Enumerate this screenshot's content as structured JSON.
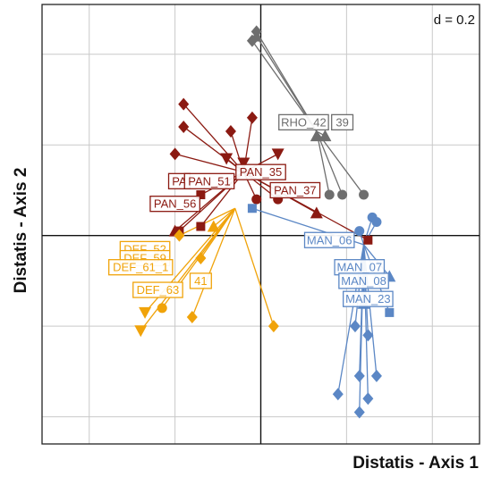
{
  "chart_data": {
    "type": "scatter",
    "xlabel": "Distatis - Axis 1",
    "ylabel": "Distatis - Axis 2",
    "scale_label": "d = 0.2",
    "grid": true,
    "xlim": [
      -0.51,
      0.51
    ],
    "ylim": [
      -0.46,
      0.51
    ],
    "grid_step": 0.2,
    "series": [
      {
        "color": "#8b1a12",
        "center": [
          -0.04,
          0.14
        ],
        "labels": [
          {
            "text": "PA",
            "x": -0.19,
            "y": 0.12
          },
          {
            "text": "PAN_51",
            "x": -0.12,
            "y": 0.12
          },
          {
            "text": "PAN_35",
            "x": 0.0,
            "y": 0.14
          },
          {
            "text": "PAN_37",
            "x": 0.08,
            "y": 0.1
          },
          {
            "text": "PAN_56",
            "x": -0.2,
            "y": 0.07
          }
        ],
        "points": [
          {
            "shape": "diamond",
            "x": -0.18,
            "y": 0.29
          },
          {
            "shape": "diamond",
            "x": -0.18,
            "y": 0.24
          },
          {
            "shape": "diamond",
            "x": -0.2,
            "y": 0.18
          },
          {
            "shape": "diamond",
            "x": -0.07,
            "y": 0.23
          },
          {
            "shape": "diamond",
            "x": -0.02,
            "y": 0.26
          },
          {
            "shape": "triangle-down",
            "x": -0.08,
            "y": 0.17
          },
          {
            "shape": "triangle-down",
            "x": -0.04,
            "y": 0.16
          },
          {
            "shape": "triangle-down",
            "x": 0.04,
            "y": 0.18
          },
          {
            "shape": "circle",
            "x": -0.01,
            "y": 0.08
          },
          {
            "shape": "circle",
            "x": 0.04,
            "y": 0.08
          },
          {
            "shape": "triangle",
            "x": 0.13,
            "y": 0.05
          },
          {
            "shape": "triangle",
            "x": -0.2,
            "y": 0.01
          },
          {
            "shape": "square",
            "x": -0.14,
            "y": 0.09
          },
          {
            "shape": "square",
            "x": -0.19,
            "y": 0.01
          },
          {
            "shape": "square",
            "x": -0.14,
            "y": 0.02
          },
          {
            "shape": "square",
            "x": 0.25,
            "y": -0.01
          }
        ]
      },
      {
        "color": "#f0a30a",
        "center": [
          -0.06,
          0.06
        ],
        "labels": [
          {
            "text": "DEF_52",
            "x": -0.27,
            "y": -0.03
          },
          {
            "text": "DEF_59",
            "x": -0.27,
            "y": -0.05
          },
          {
            "text": "DEF_61_1",
            "x": -0.28,
            "y": -0.07
          },
          {
            "text": "DEF_63",
            "x": -0.24,
            "y": -0.12
          },
          {
            "text": "41",
            "x": -0.14,
            "y": -0.1
          }
        ],
        "points": [
          {
            "shape": "diamond",
            "x": -0.19,
            "y": 0.0
          },
          {
            "shape": "diamond",
            "x": -0.14,
            "y": -0.05
          },
          {
            "shape": "diamond",
            "x": -0.16,
            "y": -0.18
          },
          {
            "shape": "diamond",
            "x": 0.03,
            "y": -0.2
          },
          {
            "shape": "triangle-down",
            "x": -0.27,
            "y": -0.17
          },
          {
            "shape": "triangle-down",
            "x": -0.28,
            "y": -0.21
          },
          {
            "shape": "circle",
            "x": -0.23,
            "y": -0.16
          },
          {
            "shape": "triangle",
            "x": -0.11,
            "y": 0.02
          }
        ]
      },
      {
        "color": "#5b87c5",
        "center": [
          0.24,
          -0.02
        ],
        "labels": [
          {
            "text": "MAN_06",
            "x": 0.16,
            "y": -0.01
          },
          {
            "text": "MAN_07",
            "x": 0.23,
            "y": -0.07
          },
          {
            "text": "MAN_08",
            "x": 0.24,
            "y": -0.1
          },
          {
            "text": "MAN_23",
            "x": 0.25,
            "y": -0.14
          }
        ],
        "points": [
          {
            "shape": "circle",
            "x": 0.26,
            "y": 0.04
          },
          {
            "shape": "circle",
            "x": 0.27,
            "y": 0.03
          },
          {
            "shape": "circle",
            "x": 0.23,
            "y": 0.01
          },
          {
            "shape": "square",
            "x": -0.02,
            "y": 0.06
          },
          {
            "shape": "square",
            "x": 0.3,
            "y": -0.17
          },
          {
            "shape": "triangle",
            "x": 0.3,
            "y": -0.09
          },
          {
            "shape": "triangle",
            "x": 0.24,
            "y": -0.15
          },
          {
            "shape": "diamond",
            "x": 0.22,
            "y": -0.2
          },
          {
            "shape": "diamond",
            "x": 0.25,
            "y": -0.22
          },
          {
            "shape": "diamond",
            "x": 0.23,
            "y": -0.31
          },
          {
            "shape": "diamond",
            "x": 0.27,
            "y": -0.31
          },
          {
            "shape": "diamond",
            "x": 0.18,
            "y": -0.35
          },
          {
            "shape": "diamond",
            "x": 0.25,
            "y": -0.36
          },
          {
            "shape": "diamond",
            "x": 0.23,
            "y": -0.39
          }
        ]
      },
      {
        "color": "#6e6e6e",
        "center": [
          0.13,
          0.23
        ],
        "labels": [
          {
            "text": "RHO_42",
            "x": 0.1,
            "y": 0.25
          },
          {
            "text": "39",
            "x": 0.19,
            "y": 0.25
          }
        ],
        "points": [
          {
            "shape": "diamond",
            "x": -0.01,
            "y": 0.45
          },
          {
            "shape": "diamond",
            "x": -0.02,
            "y": 0.43
          },
          {
            "shape": "triangle",
            "x": -0.01,
            "y": 0.44
          },
          {
            "shape": "triangle",
            "x": 0.13,
            "y": 0.22
          },
          {
            "shape": "triangle",
            "x": 0.15,
            "y": 0.22
          },
          {
            "shape": "circle",
            "x": 0.16,
            "y": 0.09
          },
          {
            "shape": "circle",
            "x": 0.19,
            "y": 0.09
          },
          {
            "shape": "circle",
            "x": 0.24,
            "y": 0.09
          }
        ]
      }
    ]
  }
}
